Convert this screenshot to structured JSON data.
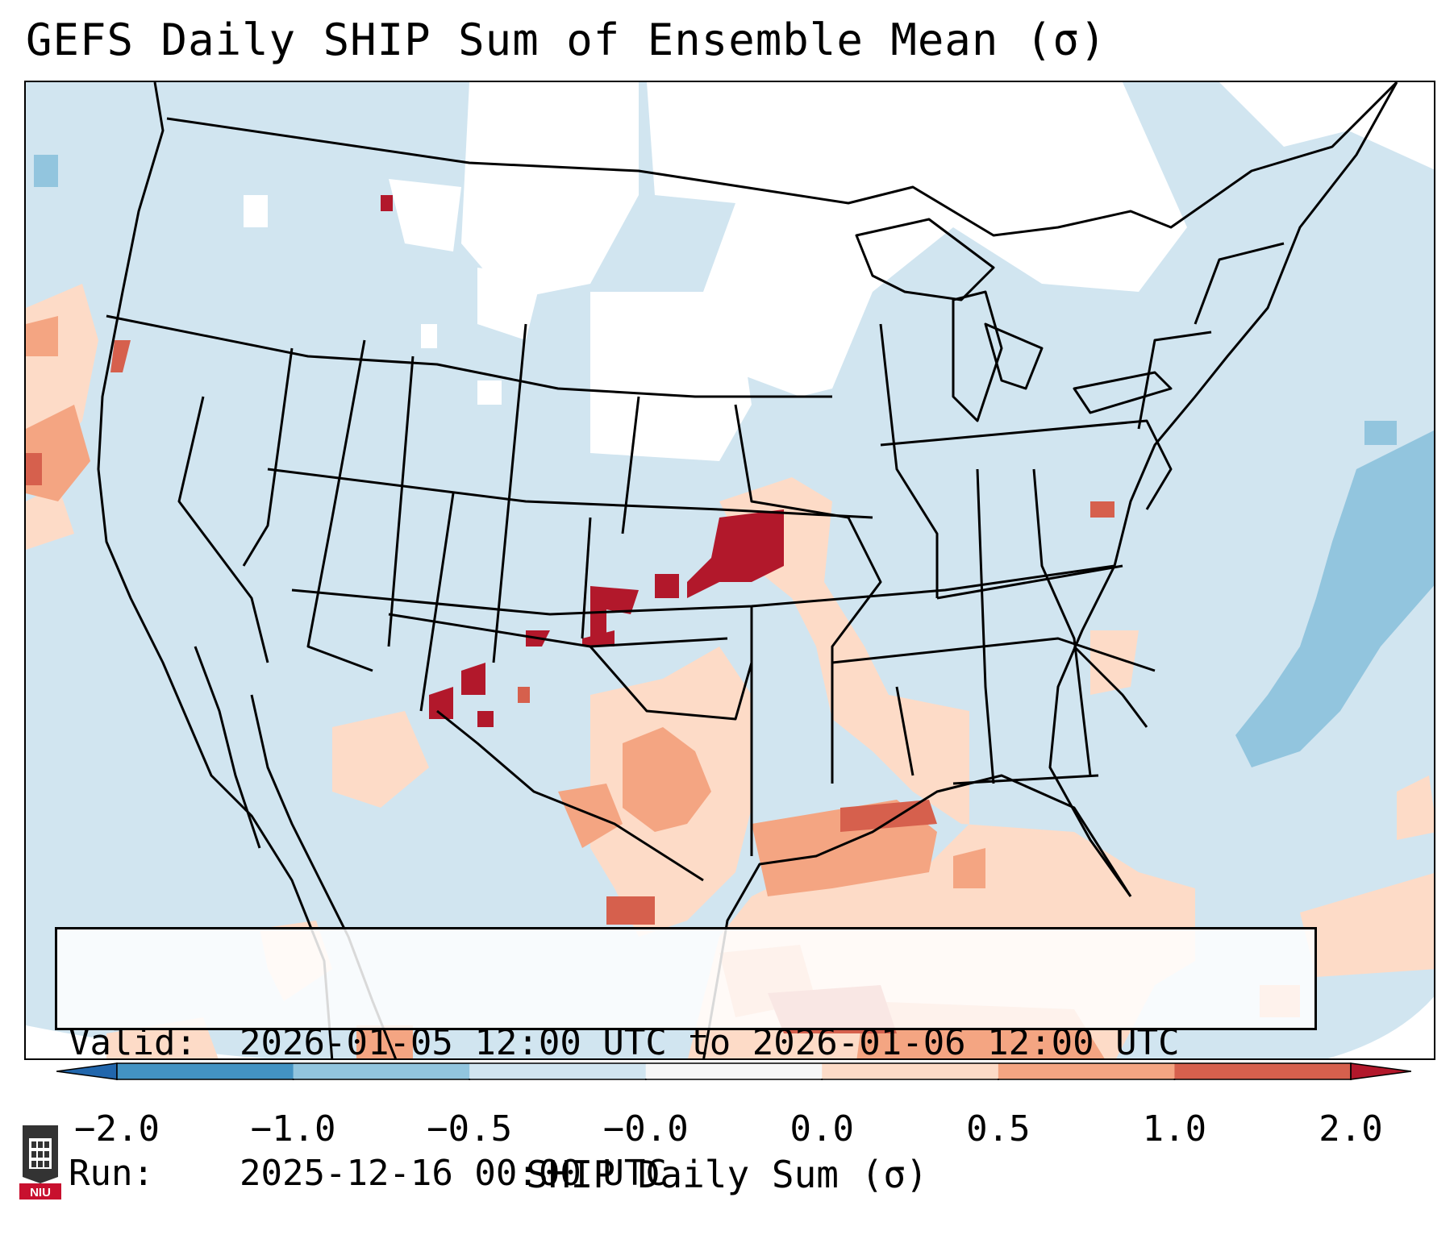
{
  "header": {
    "title": "GEFS Daily SHIP Sum of Ensemble Mean (σ)"
  },
  "info": {
    "valid_key": "Valid:",
    "valid_value": "2026-01-05 12:00 UTC to 2026-01-06 12:00 UTC",
    "run_key": "Run:",
    "run_value": "2025-12-16 00:00 UTC"
  },
  "colorbar": {
    "label": "SHIP Daily Sum (σ)",
    "ticks": [
      "−2.0",
      "−1.0",
      "−0.5",
      "−0.0",
      "0.0",
      "0.5",
      "1.0",
      "2.0"
    ],
    "bin_colors": [
      "#4393c3",
      "#92c5de",
      "#d1e5f0",
      "#f7f7f7",
      "#fddbc7",
      "#f4a582",
      "#d6604d"
    ],
    "under_color": "#2166ac",
    "over_color": "#b2182b"
  },
  "map": {
    "region": "Contiguous United States",
    "background_color": "#d1e5f0",
    "no_data_color": "#ffffff",
    "border_color": "#000000"
  },
  "logo": {
    "text": "NIU",
    "color": "#c8102e"
  }
}
